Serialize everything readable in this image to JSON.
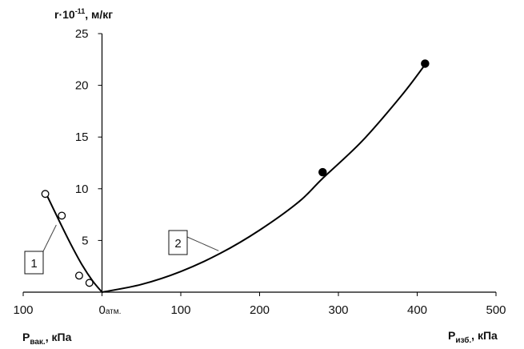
{
  "chart_data": {
    "type": "scatter",
    "colors": {
      "axis": "#000000",
      "curve": "#000000",
      "marker": "#000000"
    },
    "y_axis": {
      "title_main": "r·10",
      "title_exp": "-11",
      "title_unit": ", м/кг",
      "range": [
        0,
        25
      ],
      "ticks": [
        5,
        10,
        15,
        20,
        25
      ],
      "tick_labels": [
        "5",
        "10",
        "15",
        "20",
        "25"
      ]
    },
    "x_axis": {
      "range": [
        -100,
        500
      ],
      "ticks": [
        -100,
        0,
        100,
        200,
        300,
        400,
        500
      ],
      "tick_labels": [
        "100",
        "0",
        "100",
        "200",
        "300",
        "400",
        "500"
      ],
      "zero_suffix": "атм.",
      "left_title_main": "P",
      "left_title_sub": "вак.",
      "left_title_unit": ", кПа",
      "right_title_main": "P",
      "right_title_sub": "изб.",
      "right_title_unit": ", кПа"
    },
    "series": [
      {
        "marker": "open-circle",
        "points": [
          [
            -72,
            9.5
          ],
          [
            -51,
            7.4
          ],
          [
            -29,
            1.6
          ],
          [
            -16,
            0.9
          ]
        ],
        "curve": [
          [
            -72,
            9.7
          ],
          [
            -55,
            7.0
          ],
          [
            -40,
            4.7
          ],
          [
            -25,
            2.6
          ],
          [
            -12,
            1.1
          ],
          [
            0,
            0
          ]
        ],
        "callout_label": "1",
        "callout_anchor": [
          -58,
          6.5
        ]
      },
      {
        "marker": "filled-circle",
        "points": [
          [
            280,
            11.6
          ],
          [
            410,
            22.1
          ]
        ],
        "curve": [
          [
            0,
            0
          ],
          [
            50,
            0.75
          ],
          [
            100,
            2.0
          ],
          [
            150,
            3.75
          ],
          [
            200,
            6.0
          ],
          [
            250,
            8.75
          ],
          [
            280,
            11.0
          ],
          [
            330,
            14.6
          ],
          [
            380,
            19.0
          ],
          [
            410,
            22.0
          ]
        ],
        "callout_label": "2",
        "callout_anchor": [
          148,
          4.0
        ]
      }
    ]
  }
}
